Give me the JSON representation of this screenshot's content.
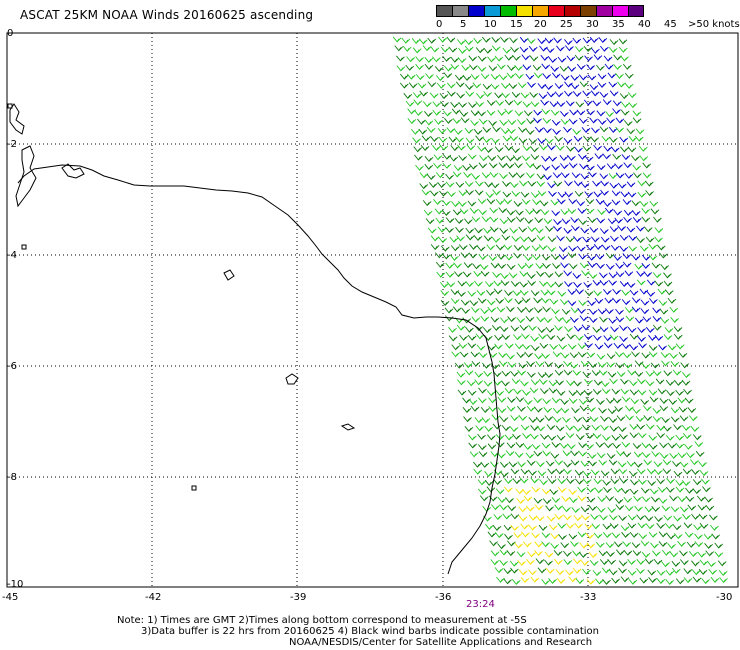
{
  "title": "ASCAT 25KM NOAA Winds 20160625 ascending",
  "legend": {
    "labels": [
      "0",
      "5",
      "10",
      "15",
      "20",
      "25",
      "30",
      "35",
      "40",
      "45",
      ">50 knots"
    ],
    "colors": [
      "#555555",
      "#888888",
      "#0000cc",
      "#0a9bd6",
      "#00bb00",
      "#f5e100",
      "#f7a800",
      "#e8001d",
      "#b50000",
      "#7b3f00",
      "#a000a0",
      "#ee00ee",
      "#5c0080"
    ]
  },
  "map": {
    "lat_ticks": [
      "0",
      "-2",
      "-4",
      "-6",
      "-8",
      "-10"
    ],
    "lon_ticks": [
      "-45",
      "-42",
      "-39",
      "-36",
      "-33",
      "-30"
    ],
    "grid": "dotted",
    "swath_start_time": "23:24",
    "wind_colors": {
      "green_light": "#22c722",
      "green_dark": "#0a7a0a",
      "blue": "#0000cc",
      "yellow": "#f5e100"
    }
  },
  "notes": {
    "line1": "Note: 1) Times are GMT 2)Times along bottom correspond to measurement at -5S",
    "line2": "3)Data buffer is 22 hrs from 20160625 4) Black wind barbs indicate possible contamination",
    "line3": "NOAA/NESDIS/Center for Satellite Applications and Research"
  }
}
